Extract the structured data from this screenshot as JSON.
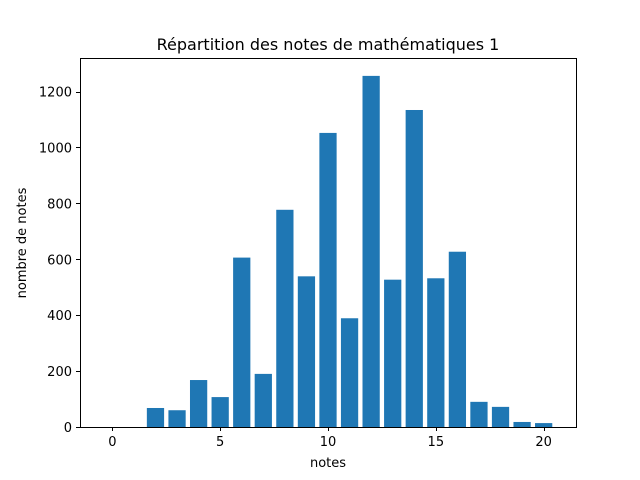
{
  "chart_data": {
    "type": "bar",
    "title": "Répartition des notes de mathématiques 1",
    "xlabel": "notes",
    "ylabel": "nombre de notes",
    "x": [
      0,
      1,
      2,
      3,
      4,
      5,
      6,
      7,
      8,
      9,
      10,
      11,
      12,
      13,
      14,
      15,
      16,
      17,
      18,
      19,
      20
    ],
    "values": [
      0,
      0,
      68,
      60,
      168,
      107,
      606,
      190,
      777,
      539,
      1052,
      389,
      1256,
      527,
      1134,
      532,
      627,
      90,
      72,
      18,
      14
    ],
    "xlim": [
      -1.5,
      21.5
    ],
    "ylim": [
      0,
      1320
    ],
    "xticks": [
      0,
      5,
      10,
      15,
      20
    ],
    "yticks": [
      0,
      200,
      400,
      600,
      800,
      1000,
      1200
    ],
    "bar_color": "#1f77b4",
    "grid": false
  }
}
